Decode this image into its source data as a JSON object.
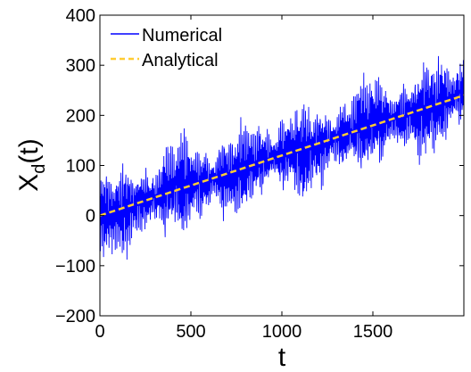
{
  "chart_data": {
    "type": "line",
    "xlabel": "t",
    "ylabel_main": "X",
    "ylabel_sub": "d",
    "ylabel_tail": "(t)",
    "xlim": [
      0,
      2000
    ],
    "ylim": [
      -200,
      400
    ],
    "xticks": [
      0,
      500,
      1000,
      1500
    ],
    "yticks": [
      -200,
      -100,
      0,
      100,
      200,
      300,
      400
    ],
    "xtick_labels": [
      "0",
      "500",
      "1000",
      "1500"
    ],
    "ytick_labels": [
      "−200",
      "−100",
      "0",
      "100",
      "200",
      "300",
      "400"
    ],
    "grid": false,
    "legend_position": "top-left",
    "series": [
      {
        "name": "Numerical",
        "color": "#0000ff",
        "style": "solid",
        "description_trend": "oscillating around 0.12*t with amplitude ~90",
        "approx_center": {
          "x": [
            0,
            2000
          ],
          "y": [
            0,
            240
          ]
        },
        "approx_envelope": {
          "low_at_start": -120,
          "high_at_start": 120,
          "low_at_end": 130,
          "high_at_end": 345
        }
      },
      {
        "name": "Analytical",
        "color": "#ffcc33",
        "style": "dashed",
        "x": [
          0,
          2000
        ],
        "y": [
          0,
          240
        ]
      }
    ]
  }
}
